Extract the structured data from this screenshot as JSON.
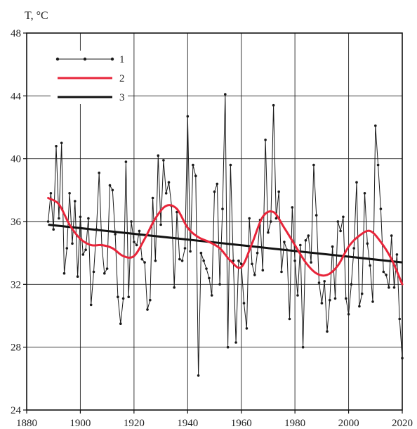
{
  "chart_data": {
    "type": "line",
    "ylabel": "T, °C",
    "xlim": [
      1880,
      2020
    ],
    "ylim": [
      24,
      48
    ],
    "xticks": [
      1880,
      1900,
      1920,
      1940,
      1960,
      1980,
      2000,
      2020
    ],
    "yticks": [
      24,
      28,
      32,
      36,
      40,
      44,
      48
    ],
    "grid": true,
    "legend_position": "top-left",
    "series": [
      {
        "name": "1",
        "style": "line-markers",
        "color": "#1a1a1a",
        "x": [
          1888,
          1889,
          1890,
          1891,
          1892,
          1893,
          1894,
          1895,
          1896,
          1897,
          1898,
          1899,
          1900,
          1901,
          1902,
          1903,
          1904,
          1905,
          1906,
          1907,
          1908,
          1909,
          1910,
          1911,
          1912,
          1913,
          1914,
          1915,
          1916,
          1917,
          1918,
          1919,
          1920,
          1921,
          1922,
          1923,
          1924,
          1925,
          1926,
          1927,
          1928,
          1929,
          1930,
          1931,
          1932,
          1933,
          1934,
          1935,
          1936,
          1937,
          1938,
          1939,
          1940,
          1941,
          1942,
          1943,
          1944,
          1945,
          1946,
          1947,
          1948,
          1949,
          1950,
          1951,
          1952,
          1953,
          1954,
          1955,
          1956,
          1957,
          1958,
          1959,
          1960,
          1961,
          1962,
          1963,
          1964,
          1965,
          1966,
          1967,
          1968,
          1969,
          1970,
          1971,
          1972,
          1973,
          1974,
          1975,
          1976,
          1977,
          1978,
          1979,
          1980,
          1981,
          1982,
          1983,
          1984,
          1985,
          1986,
          1987,
          1988,
          1989,
          1990,
          1991,
          1992,
          1993,
          1994,
          1995,
          1996,
          1997,
          1998,
          1999,
          2000,
          2001,
          2002,
          2003,
          2004,
          2005,
          2006,
          2007,
          2008,
          2009,
          2010,
          2011,
          2012,
          2013,
          2014,
          2015,
          2016,
          2017,
          2018,
          2019,
          2020
        ],
        "y": [
          36.0,
          37.8,
          35.5,
          40.8,
          36.2,
          41.0,
          32.7,
          34.3,
          37.8,
          34.6,
          37.3,
          32.5,
          36.3,
          33.9,
          34.2,
          36.2,
          30.7,
          32.8,
          35.5,
          39.1,
          34.5,
          32.7,
          33.0,
          38.3,
          38.0,
          35.2,
          31.2,
          29.5,
          31.1,
          39.8,
          31.2,
          36.0,
          34.7,
          34.5,
          35.4,
          33.6,
          33.4,
          30.4,
          31.0,
          37.5,
          33.5,
          40.2,
          35.8,
          39.9,
          37.8,
          38.5,
          37.0,
          31.8,
          36.6,
          33.6,
          33.5,
          34.3,
          42.7,
          34.1,
          39.6,
          38.9,
          26.2,
          34.0,
          33.5,
          33.0,
          32.4,
          31.3,
          37.9,
          38.4,
          32.0,
          36.8,
          44.1,
          28.0,
          39.6,
          33.5,
          28.3,
          33.5,
          33.3,
          30.8,
          29.2,
          36.2,
          33.3,
          32.6,
          34.0,
          36.1,
          32.9,
          41.2,
          35.3,
          36.0,
          43.4,
          36.2,
          37.9,
          32.8,
          34.7,
          34.2,
          29.8,
          36.9,
          33.5,
          31.3,
          34.5,
          28.0,
          34.8,
          35.1,
          33.4,
          39.6,
          36.4,
          32.1,
          30.8,
          32.2,
          29.0,
          31.0,
          34.4,
          31.1,
          36.0,
          35.4,
          36.3,
          31.1,
          30.1,
          32.0,
          34.3,
          38.5,
          30.6,
          31.4,
          37.8,
          34.6,
          33.2,
          30.9,
          42.1,
          39.6,
          36.8,
          32.8,
          32.6,
          31.8,
          35.1,
          31.8,
          33.9,
          29.8,
          27.3
        ]
      },
      {
        "name": "2",
        "style": "smooth",
        "color": "#e8253a",
        "x": [
          1888,
          1892,
          1896,
          1900,
          1904,
          1908,
          1912,
          1916,
          1920,
          1924,
          1928,
          1932,
          1936,
          1940,
          1944,
          1948,
          1952,
          1956,
          1960,
          1964,
          1968,
          1972,
          1976,
          1980,
          1984,
          1988,
          1992,
          1996,
          2000,
          2004,
          2008,
          2012,
          2016,
          2020
        ],
        "y": [
          37.5,
          37.1,
          35.8,
          34.9,
          34.5,
          34.5,
          34.3,
          33.8,
          33.8,
          34.9,
          36.2,
          37.0,
          36.8,
          35.6,
          35.0,
          34.7,
          34.3,
          33.5,
          33.1,
          34.6,
          36.3,
          36.6,
          35.6,
          34.5,
          33.4,
          32.7,
          32.6,
          33.2,
          34.4,
          35.1,
          35.4,
          34.7,
          33.6,
          32.0
        ]
      },
      {
        "name": "3",
        "style": "trend",
        "color": "#111111",
        "x": [
          1888,
          2020
        ],
        "y": [
          35.8,
          33.4
        ]
      }
    ]
  }
}
